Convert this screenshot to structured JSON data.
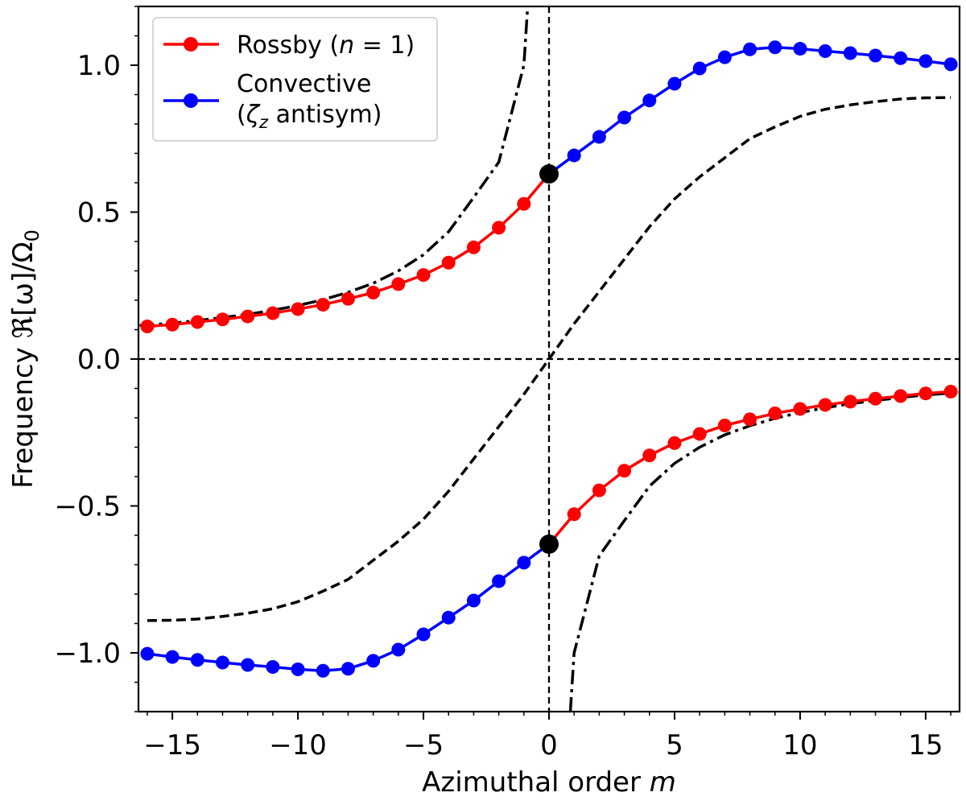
{
  "chart_data": {
    "type": "line",
    "xlabel": "Azimuthal order m",
    "ylabel": "Frequency ℜ[ω]/Ω₀",
    "xlim": [
      -16.35,
      16.35
    ],
    "ylim": [
      -1.2,
      1.2
    ],
    "xticks": [
      {
        "value": -15,
        "label": "−15"
      },
      {
        "value": -10,
        "label": "−10"
      },
      {
        "value": -5,
        "label": "−5"
      },
      {
        "value": 0,
        "label": "0"
      },
      {
        "value": 5,
        "label": "5"
      },
      {
        "value": 10,
        "label": "10"
      },
      {
        "value": 15,
        "label": "15"
      }
    ],
    "yticks": [
      {
        "value": -1.0,
        "label": "−1.0"
      },
      {
        "value": -0.5,
        "label": "−0.5"
      },
      {
        "value": 0.0,
        "label": "0.0"
      },
      {
        "value": 0.5,
        "label": "0.5"
      },
      {
        "value": 1.0,
        "label": "1.0"
      }
    ],
    "legend": {
      "position": "top-left",
      "entries": [
        {
          "label": "Rossby (n = 1)",
          "color": "#ff0000"
        },
        {
          "label_line1": "Convective",
          "label_line2": "(ζz antisym)",
          "color": "#0000ff"
        }
      ]
    },
    "reference_lines": {
      "x": 0,
      "y": 0,
      "style": "dashed"
    },
    "colors": {
      "rossby": "#ff0000",
      "convective": "#0000ff",
      "theory": "#000000",
      "marker_m0": "#000000"
    },
    "series": [
      {
        "name": "Rossby (n = 1), upper branch",
        "color": "#ff0000",
        "x": [
          -16,
          -15,
          -14,
          -13,
          -12,
          -11,
          -10,
          -9,
          -8,
          -7,
          -6,
          -5,
          -4,
          -3,
          -2,
          -1,
          0
        ],
        "y": [
          0.111,
          0.117,
          0.126,
          0.135,
          0.145,
          0.156,
          0.17,
          0.185,
          0.205,
          0.226,
          0.255,
          0.286,
          0.328,
          0.38,
          0.447,
          0.528,
          0.63
        ]
      },
      {
        "name": "Convective, upper branch",
        "color": "#0000ff",
        "x": [
          0,
          1,
          2,
          3,
          4,
          5,
          6,
          7,
          8,
          9,
          10,
          11,
          12,
          13,
          14,
          15,
          16
        ],
        "y": [
          0.63,
          0.693,
          0.756,
          0.822,
          0.88,
          0.937,
          0.989,
          1.027,
          1.054,
          1.061,
          1.056,
          1.048,
          1.041,
          1.033,
          1.024,
          1.014,
          1.003
        ]
      },
      {
        "name": "Rossby (n = 1), lower branch",
        "color": "#ff0000",
        "x": [
          0,
          1,
          2,
          3,
          4,
          5,
          6,
          7,
          8,
          9,
          10,
          11,
          12,
          13,
          14,
          15,
          16
        ],
        "y": [
          -0.63,
          -0.528,
          -0.447,
          -0.38,
          -0.328,
          -0.286,
          -0.255,
          -0.226,
          -0.205,
          -0.185,
          -0.17,
          -0.156,
          -0.145,
          -0.135,
          -0.126,
          -0.117,
          -0.111
        ]
      },
      {
        "name": "Convective, lower branch",
        "color": "#0000ff",
        "x": [
          -16,
          -15,
          -14,
          -13,
          -12,
          -11,
          -10,
          -9,
          -8,
          -7,
          -6,
          -5,
          -4,
          -3,
          -2,
          -1,
          0
        ],
        "y": [
          -1.003,
          -1.014,
          -1.024,
          -1.033,
          -1.041,
          -1.048,
          -1.056,
          -1.061,
          -1.054,
          -1.027,
          -0.989,
          -0.937,
          -0.88,
          -0.822,
          -0.756,
          -0.693,
          -0.63
        ]
      },
      {
        "name": "m = 0 points",
        "color": "#000000",
        "x": [
          0,
          0
        ],
        "y": [
          0.63,
          -0.63
        ]
      },
      {
        "name": "Dash-dot curve (left)",
        "color": "#000000",
        "style": "dashdot",
        "x": [
          -16.3,
          -15,
          -14,
          -13,
          -12,
          -11,
          -10,
          -9,
          -8,
          -7,
          -6,
          -5,
          -4,
          -3,
          -2,
          -1,
          -0.85
        ],
        "y": [
          0.114,
          0.122,
          0.131,
          0.141,
          0.152,
          0.166,
          0.182,
          0.202,
          0.227,
          0.258,
          0.3,
          0.355,
          0.433,
          0.55,
          0.67,
          1.0,
          1.2
        ]
      },
      {
        "name": "Dash-dot curve (right)",
        "color": "#000000",
        "style": "dashdot",
        "x": [
          0.85,
          1,
          2,
          3,
          4,
          5,
          6,
          7,
          8,
          9,
          10,
          11,
          12,
          13,
          14,
          15,
          16.3
        ],
        "y": [
          -1.2,
          -1.0,
          -0.67,
          -0.55,
          -0.433,
          -0.355,
          -0.3,
          -0.258,
          -0.227,
          -0.202,
          -0.182,
          -0.166,
          -0.152,
          -0.141,
          -0.131,
          -0.122,
          -0.114
        ]
      },
      {
        "name": "Dashed curve",
        "color": "#000000",
        "style": "dashed",
        "x": [
          -16,
          -15,
          -14,
          -13,
          -12,
          -11,
          -10,
          -9,
          -8,
          -7,
          -6,
          -5,
          -4,
          -3,
          -2,
          -1,
          0,
          1,
          2,
          3,
          4,
          5,
          6,
          7,
          8,
          9,
          10,
          11,
          12,
          13,
          14,
          15,
          16
        ],
        "y": [
          -0.89,
          -0.889,
          -0.885,
          -0.876,
          -0.865,
          -0.85,
          -0.826,
          -0.79,
          -0.75,
          -0.685,
          -0.62,
          -0.545,
          -0.45,
          -0.34,
          -0.23,
          -0.12,
          0.0,
          0.12,
          0.23,
          0.34,
          0.45,
          0.545,
          0.62,
          0.685,
          0.75,
          0.79,
          0.826,
          0.85,
          0.865,
          0.876,
          0.885,
          0.889,
          0.89
        ]
      }
    ]
  }
}
